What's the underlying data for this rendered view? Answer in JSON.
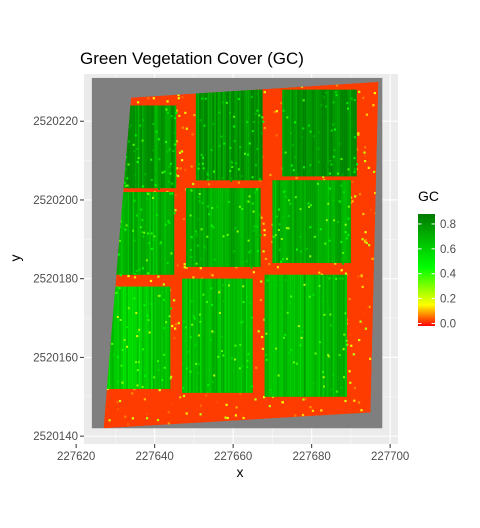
{
  "chart_data": {
    "type": "heatmap",
    "title": "Green Vegetation Cover (GC)",
    "xlabel": "x",
    "ylabel": "y",
    "xlim": [
      227622,
      227702
    ],
    "ylim": [
      2520138,
      2520232
    ],
    "x_ticks": [
      227620,
      227640,
      227660,
      227680,
      227700
    ],
    "y_ticks": [
      2520140,
      2520160,
      2520180,
      2520200,
      2520220
    ],
    "panel_background": "#ebebeb",
    "grid": true,
    "raster_extent": {
      "xmin": 227624,
      "xmax": 227698,
      "ymin": 2520142,
      "ymax": 2520231
    },
    "nodata_color": "#7f7f7f",
    "field_boundary": [
      [
        227627,
        2520142
      ],
      [
        227695,
        2520146
      ],
      [
        227697,
        2520230
      ],
      [
        227634,
        2520226
      ]
    ],
    "plots": [
      {
        "x0": 227631.5,
        "x1": 227645.5,
        "y0": 2520203,
        "y1": 2520224,
        "gc": 0.78
      },
      {
        "x0": 227650.5,
        "x1": 227667.5,
        "y0": 2520205,
        "y1": 2520228,
        "gc": 0.8
      },
      {
        "x0": 227672.5,
        "x1": 227691.5,
        "y0": 2520206,
        "y1": 2520228,
        "gc": 0.8
      },
      {
        "x0": 227628,
        "x1": 227645,
        "y0": 2520181,
        "y1": 2520202,
        "gc": 0.7
      },
      {
        "x0": 227648,
        "x1": 227667,
        "y0": 2520183,
        "y1": 2520203,
        "gc": 0.72
      },
      {
        "x0": 227670,
        "x1": 227690,
        "y0": 2520184,
        "y1": 2520205,
        "gc": 0.72
      },
      {
        "x0": 227626,
        "x1": 227644,
        "y0": 2520152,
        "y1": 2520178,
        "gc": 0.62
      },
      {
        "x0": 227647,
        "x1": 227665,
        "y0": 2520151,
        "y1": 2520180,
        "gc": 0.66
      },
      {
        "x0": 227668,
        "x1": 227689,
        "y0": 2520150,
        "y1": 2520181,
        "gc": 0.68
      }
    ],
    "background_gc": 0.02,
    "legend": {
      "title": "GC",
      "position": "right",
      "breaks": [
        0.0,
        0.2,
        0.4,
        0.6,
        0.8
      ],
      "labels": [
        "0.0",
        "0.2",
        "0.4",
        "0.6",
        "0.8"
      ],
      "range": [
        -0.02,
        0.88
      ],
      "colors": [
        {
          "value": -0.02,
          "color": "#ff0000"
        },
        {
          "value": 0.15,
          "color": "#ffff00"
        },
        {
          "value": 0.45,
          "color": "#00ff00"
        },
        {
          "value": 0.88,
          "color": "#007a00"
        }
      ]
    }
  }
}
